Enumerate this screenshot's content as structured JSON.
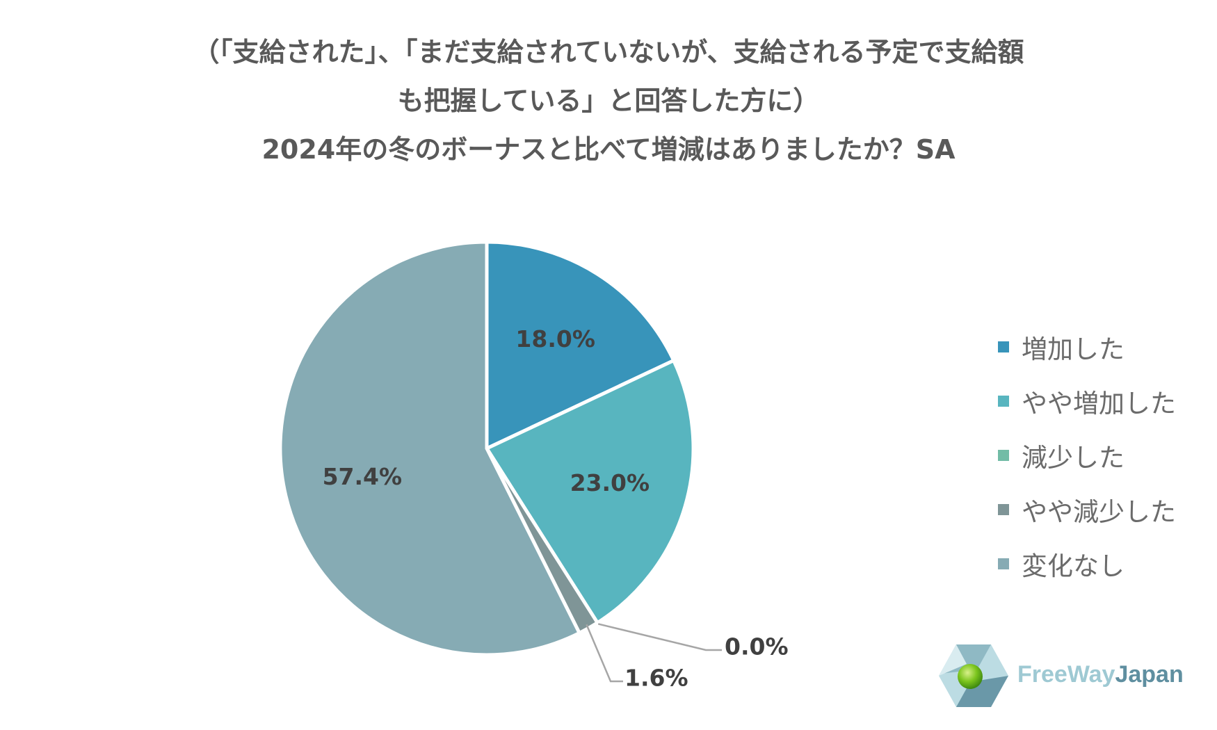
{
  "title": {
    "line1": "（「支給された」、「まだ支給されていないが、支給される予定で支給額",
    "line2": "も把握している」と回答した方に）",
    "line3": "2024年の冬のボーナスと比べて増減はありましたか？SA"
  },
  "chart_data": {
    "type": "pie",
    "categories": [
      "増加した",
      "やや増加した",
      "減少した",
      "やや減少した",
      "変化なし"
    ],
    "values": [
      18.0,
      23.0,
      0.0,
      1.6,
      57.4
    ],
    "labels": [
      "18.0%",
      "23.0%",
      "0.0%",
      "1.6%",
      "57.4%"
    ],
    "colors": [
      "#3894ba",
      "#58b5bf",
      "#72bca6",
      "#7f9597",
      "#86abb4"
    ],
    "start_angle": "12 o'clock",
    "direction": "clockwise",
    "legend_position": "right"
  },
  "logo": {
    "text_part1": "FreeWay",
    "text_part2": "Japan",
    "icon": "freewayjapan-logo-icon"
  }
}
